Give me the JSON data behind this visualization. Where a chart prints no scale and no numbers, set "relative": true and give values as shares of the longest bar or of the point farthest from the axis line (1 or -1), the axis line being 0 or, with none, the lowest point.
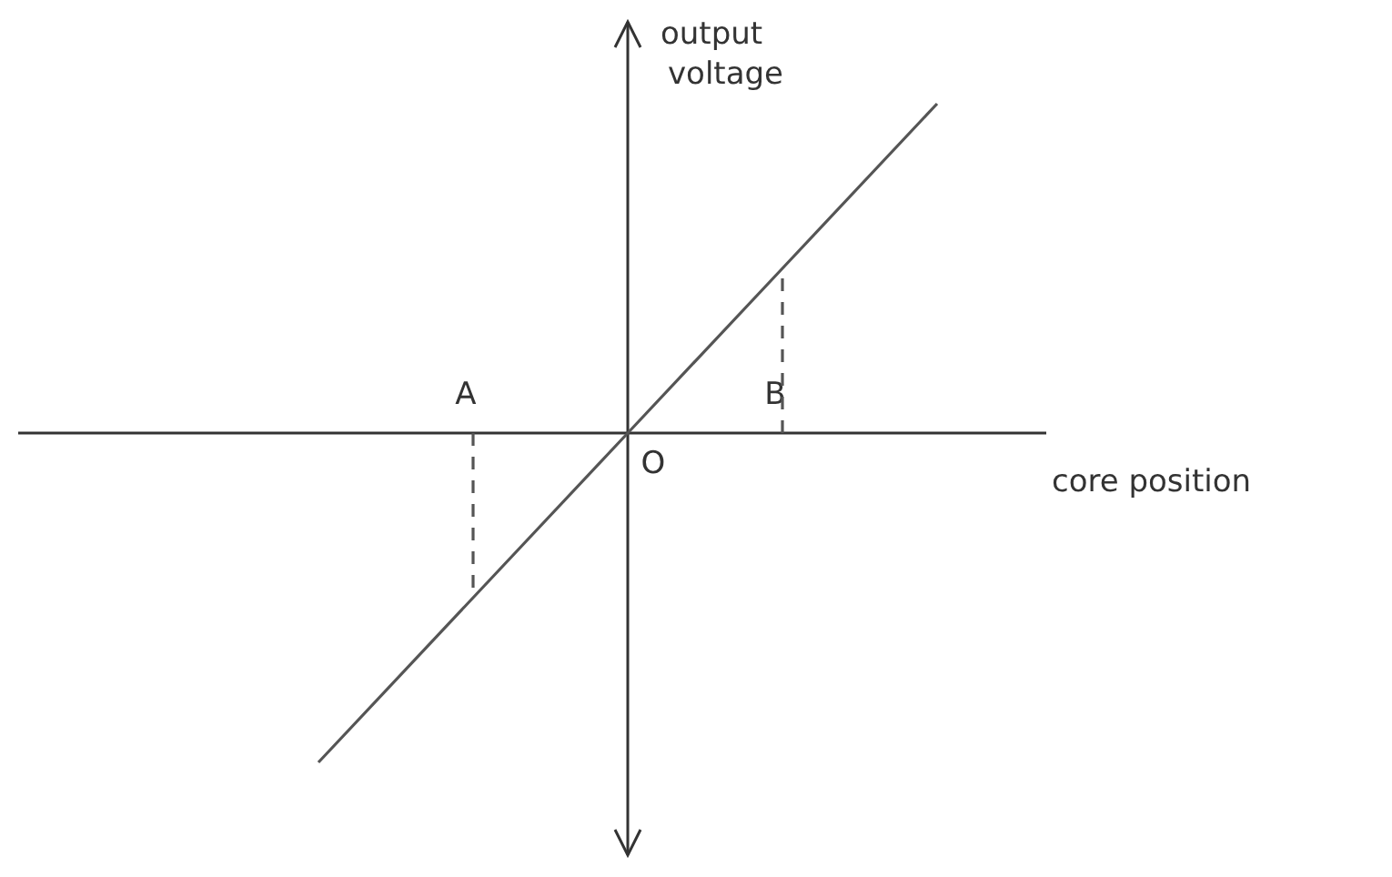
{
  "chart_data": {
    "type": "line",
    "relative": true,
    "xlabel": "core position",
    "ylabel": "output voltage",
    "categories": [
      null,
      "A",
      "O",
      "B",
      null
    ],
    "series": [
      {
        "color": "#555555",
        "values": [
          -1,
          -0.5,
          0,
          0.5,
          1
        ]
      },
      {
        "type": "line",
        "color": "#555555",
        "x": [
          "A",
          "A"
        ],
        "values": [
          0,
          -0.5
        ],
        "line_style": "dashed"
      },
      {
        "type": "line",
        "color": "#555555",
        "x": [
          "B",
          "B"
        ],
        "values": [
          0,
          0.5
        ],
        "line_style": "dashed"
      }
    ]
  }
}
